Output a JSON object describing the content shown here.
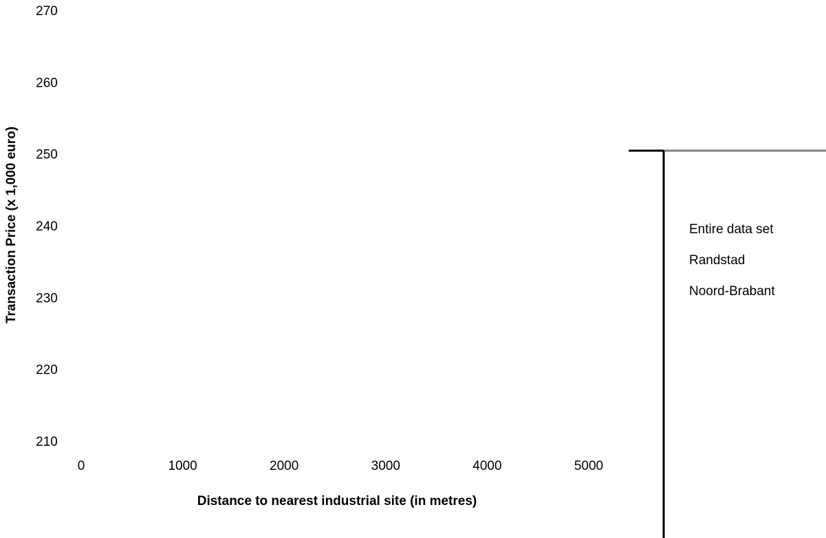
{
  "chart_data": {
    "type": "line",
    "title": "",
    "xlabel": "Distance to nearest industrial site (in metres)",
    "ylabel": "Transaction Price (x 1,000 euro)",
    "xlim": [
      0,
      5000
    ],
    "ylim": [
      210,
      270
    ],
    "x_ticks": [
      0,
      1000,
      2000,
      3000,
      4000,
      5000
    ],
    "y_ticks": [
      210,
      220,
      230,
      240,
      250,
      260,
      270
    ],
    "grid": false,
    "legend_position": "right",
    "series": [
      {
        "name": "Entire data set",
        "color": "#000000",
        "points": []
      },
      {
        "name": "Randstad",
        "color": "#808080",
        "points": []
      },
      {
        "name": "Noord-Brabant",
        "color": "#000000",
        "points": []
      }
    ]
  }
}
